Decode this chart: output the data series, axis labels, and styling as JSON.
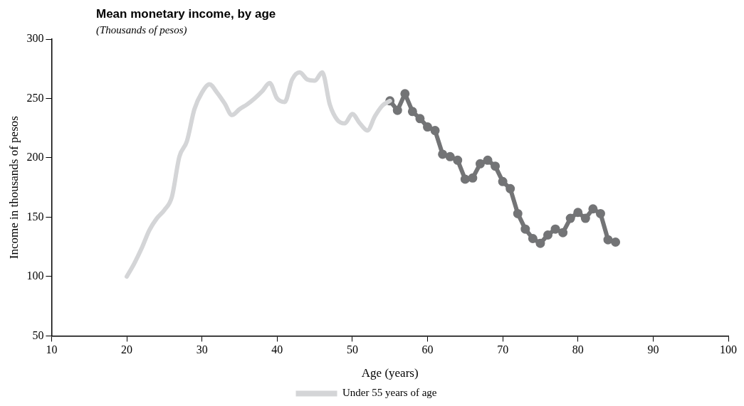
{
  "chart_data": {
    "type": "line",
    "title": "Mean monetary income, by age",
    "subtitle": "(Thousands of pesos)",
    "xlabel": "Age (years)",
    "ylabel": "Income in thousands of pesos",
    "xlim": [
      10,
      100
    ],
    "xticks": [
      10,
      20,
      30,
      40,
      50,
      60,
      70,
      80,
      90,
      100
    ],
    "ylim": [
      50,
      300
    ],
    "yticks": [
      50,
      100,
      150,
      200,
      250,
      300
    ],
    "grid": false,
    "legend": "bottom",
    "series": [
      {
        "name": "Under 55 years of age",
        "color": "#d4d5d7",
        "x": [
          20,
          21,
          22,
          23,
          24,
          25,
          26,
          27,
          28,
          29,
          30,
          31,
          32,
          33,
          34,
          35,
          36,
          37,
          38,
          39,
          40,
          41,
          42,
          43,
          44,
          45,
          46,
          47,
          48,
          49,
          50,
          51,
          52,
          53,
          54,
          55
        ],
        "values": [
          100,
          111,
          124,
          139,
          149,
          156,
          167,
          201,
          214,
          241,
          255,
          262,
          255,
          246,
          236,
          241,
          245,
          250,
          256,
          263,
          250,
          247,
          266,
          272,
          266,
          265,
          272,
          245,
          232,
          229,
          237,
          229,
          223,
          235,
          244,
          248
        ]
      },
      {
        "color": "#737476",
        "marker": "circle",
        "x": [
          55,
          56,
          57,
          58,
          59,
          60,
          61,
          62,
          63,
          64,
          65,
          66,
          67,
          68,
          69,
          70,
          71,
          72,
          73,
          74,
          75,
          76,
          77,
          78,
          79,
          80,
          81,
          82,
          83,
          84,
          85
        ],
        "values": [
          248,
          240,
          254,
          239,
          233,
          226,
          223,
          203,
          201,
          198,
          182,
          183,
          195,
          198,
          193,
          180,
          174,
          153,
          140,
          132,
          128,
          135,
          140,
          137,
          149,
          154,
          149,
          157,
          153,
          131,
          129
        ]
      }
    ]
  }
}
